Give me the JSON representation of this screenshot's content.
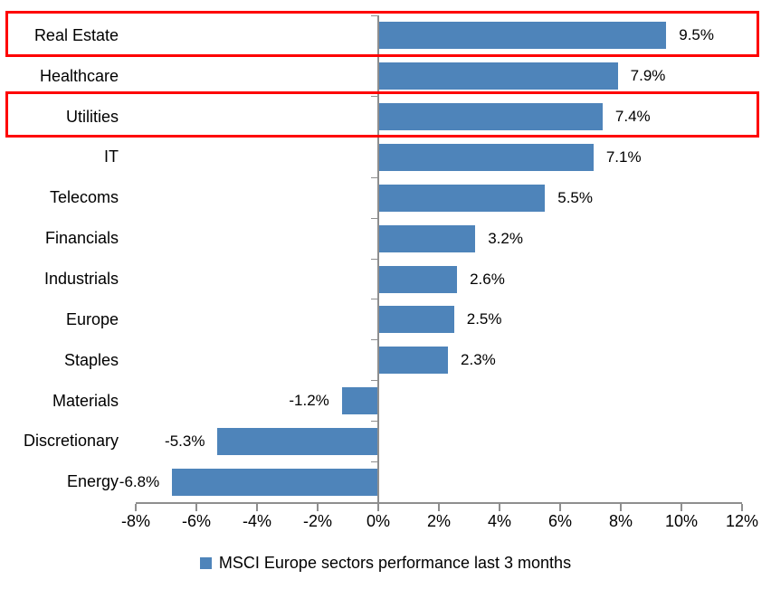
{
  "chart_data": {
    "type": "bar",
    "orientation": "horizontal",
    "title": "",
    "series_name": "MSCI Europe sectors performance last 3 months",
    "categories": [
      "Real Estate",
      "Healthcare",
      "Utilities",
      "IT",
      "Telecoms",
      "Financials",
      "Industrials",
      "Europe",
      "Staples",
      "Materials",
      "Discretionary",
      "Energy"
    ],
    "values": [
      9.5,
      7.9,
      7.4,
      7.1,
      5.5,
      3.2,
      2.6,
      2.5,
      2.3,
      -1.2,
      -5.3,
      -6.8
    ],
    "value_labels": [
      "9.5%",
      "7.9%",
      "7.4%",
      "7.1%",
      "5.5%",
      "3.2%",
      "2.6%",
      "2.5%",
      "2.3%",
      "-1.2%",
      "-5.3%",
      "-6.8%"
    ],
    "x_tick_values": [
      -8,
      -6,
      -4,
      -2,
      0,
      2,
      4,
      6,
      8,
      10,
      12
    ],
    "x_tick_labels": [
      "-8%",
      "-6%",
      "-4%",
      "-2%",
      "0%",
      "2%",
      "4%",
      "6%",
      "8%",
      "10%",
      "12%"
    ],
    "xlim": [
      -8,
      12
    ],
    "grid": false,
    "legend_position": "bottom-center",
    "highlighted_categories": [
      "Real Estate",
      "Utilities"
    ],
    "bar_color": "#4E84BA",
    "highlight_color": "#FE0000",
    "axis_color": "#8E8E8E",
    "text_color": "#000000"
  },
  "legend": {
    "label": "MSCI Europe sectors performance last 3 months",
    "marker_color": "#4E84BA"
  }
}
